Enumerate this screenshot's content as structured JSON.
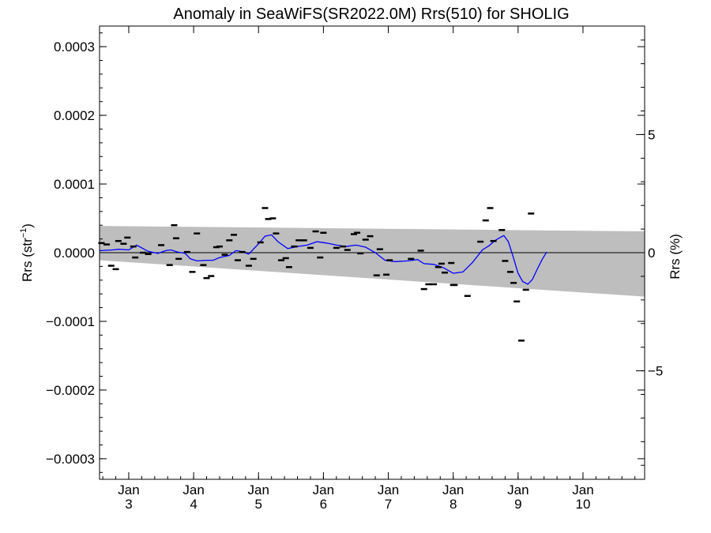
{
  "chart_data": {
    "type": "scatter",
    "title": "Anomaly in SeaWiFS(SR2022.0M) Rrs(510) for SHOLIG",
    "ylabel_left": "Rrs (str",
    "ylabel_left_sup": "−1",
    "ylabel_left_close": ")",
    "ylabel_right": "Rrs (%)",
    "xlim": [
      2.55,
      10.95
    ],
    "ylim": [
      -0.00033,
      0.00033
    ],
    "y_ticks": [
      {
        "value": 0.0003,
        "label": "0.0003"
      },
      {
        "value": 0.0002,
        "label": "0.0002"
      },
      {
        "value": 0.0001,
        "label": "0.0001"
      },
      {
        "value": 0.0,
        "label": "0.0000"
      },
      {
        "value": -0.0001,
        "label": "−0.0001"
      },
      {
        "value": -0.0002,
        "label": "−0.0002"
      },
      {
        "value": -0.0003,
        "label": "−0.0003"
      }
    ],
    "y_right_ticks": [
      {
        "value": 0.000172,
        "label": "5"
      },
      {
        "value": 0.0,
        "label": "0"
      },
      {
        "value": -0.000172,
        "label": "−5"
      }
    ],
    "x_ticks": [
      {
        "value": 3,
        "line1": "Jan",
        "line2": "3"
      },
      {
        "value": 4,
        "line1": "Jan",
        "line2": "4"
      },
      {
        "value": 5,
        "line1": "Jan",
        "line2": "5"
      },
      {
        "value": 6,
        "line1": "Jan",
        "line2": "6"
      },
      {
        "value": 7,
        "line1": "Jan",
        "line2": "7"
      },
      {
        "value": 8,
        "line1": "Jan",
        "line2": "8"
      },
      {
        "value": 9,
        "line1": "Jan",
        "line2": "9"
      },
      {
        "value": 10,
        "line1": "Jan",
        "line2": "10"
      }
    ],
    "band": {
      "upper_start": 3.9e-05,
      "upper_end": 3.1e-05,
      "lower_start": -1.1e-05,
      "lower_end": -6.4e-05,
      "color": "#bebebe"
    },
    "zero_line": 0.0,
    "points": [
      [
        2.58,
        1.4e-05
      ],
      [
        2.66,
        1.2e-05
      ],
      [
        2.73,
        -1.9e-05
      ],
      [
        2.8,
        -2.4e-05
      ],
      [
        2.84,
        1.7e-05
      ],
      [
        2.92,
        1.3e-05
      ],
      [
        2.98,
        2.2e-05
      ],
      [
        3.07,
        9e-06
      ],
      [
        3.1,
        -7e-06
      ],
      [
        3.22,
        0.0
      ],
      [
        3.3,
        -2e-06
      ],
      [
        3.5,
        1.1e-05
      ],
      [
        3.63,
        -1.8e-05
      ],
      [
        3.7,
        4e-05
      ],
      [
        3.73,
        2.1e-05
      ],
      [
        3.77,
        -9e-06
      ],
      [
        3.9,
        1e-06
      ],
      [
        3.98,
        -2.8e-05
      ],
      [
        4.05,
        2.8e-05
      ],
      [
        4.15,
        -1.8e-05
      ],
      [
        4.2,
        -3.7e-05
      ],
      [
        4.27,
        -3.4e-05
      ],
      [
        4.35,
        8e-06
      ],
      [
        4.4,
        9e-06
      ],
      [
        4.48,
        -3e-06
      ],
      [
        4.55,
        1.8e-05
      ],
      [
        4.62,
        2.6e-05
      ],
      [
        4.68,
        -1.1e-05
      ],
      [
        4.75,
        1e-06
      ],
      [
        4.85,
        -1.9e-05
      ],
      [
        4.92,
        -9e-06
      ],
      [
        5.03,
        1.5e-05
      ],
      [
        5.1,
        6.5e-05
      ],
      [
        5.15,
        4.9e-05
      ],
      [
        5.22,
        5e-05
      ],
      [
        5.27,
        2.8e-05
      ],
      [
        5.35,
        -1.1e-05
      ],
      [
        5.42,
        -8e-06
      ],
      [
        5.47,
        -2.1e-05
      ],
      [
        5.55,
        9e-06
      ],
      [
        5.62,
        1.8e-05
      ],
      [
        5.7,
        1.8e-05
      ],
      [
        5.8,
        7e-06
      ],
      [
        5.88,
        3.1e-05
      ],
      [
        5.95,
        -7e-06
      ],
      [
        6.0,
        2.9e-05
      ],
      [
        6.2,
        7e-06
      ],
      [
        6.3,
        9e-06
      ],
      [
        6.37,
        4e-06
      ],
      [
        6.47,
        2.7e-05
      ],
      [
        6.52,
        2.9e-05
      ],
      [
        6.57,
        -1e-06
      ],
      [
        6.65,
        1.9e-05
      ],
      [
        6.72,
        2.4e-05
      ],
      [
        6.82,
        -3.3e-05
      ],
      [
        6.87,
        5e-06
      ],
      [
        6.97,
        -3.2e-05
      ],
      [
        7.02,
        -1.1e-05
      ],
      [
        7.35,
        -9e-06
      ],
      [
        7.5,
        3e-06
      ],
      [
        7.55,
        -5.3e-05
      ],
      [
        7.62,
        -4.6e-05
      ],
      [
        7.7,
        -4.6e-05
      ],
      [
        7.77,
        -2.1e-05
      ],
      [
        7.82,
        -1.6e-05
      ],
      [
        7.87,
        -2.9e-05
      ],
      [
        7.97,
        -1.5e-05
      ],
      [
        8.0,
        -4.7e-05
      ],
      [
        8.02,
        -4.7e-05
      ],
      [
        8.22,
        -6.3e-05
      ],
      [
        8.42,
        1.6e-05
      ],
      [
        8.5,
        4.7e-05
      ],
      [
        8.57,
        6.5e-05
      ],
      [
        8.62,
        1.7e-05
      ],
      [
        8.75,
        3.3e-05
      ],
      [
        8.8,
        -1.2e-05
      ],
      [
        8.88,
        -2.8e-05
      ],
      [
        8.93,
        -4.4e-05
      ],
      [
        8.98,
        -7.1e-05
      ],
      [
        9.05,
        -0.000128
      ],
      [
        9.12,
        -5.4e-05
      ],
      [
        9.2,
        5.7e-05
      ]
    ],
    "smooth_line": [
      [
        2.55,
        3e-06
      ],
      [
        2.75,
        4e-06
      ],
      [
        2.85,
        5e-06
      ],
      [
        3.0,
        4e-06
      ],
      [
        3.12,
        1.1e-05
      ],
      [
        3.3,
        2e-06
      ],
      [
        3.45,
        -1e-06
      ],
      [
        3.57,
        3e-06
      ],
      [
        3.65,
        4e-06
      ],
      [
        3.75,
        1e-06
      ],
      [
        3.87,
        -1e-06
      ],
      [
        3.95,
        -9e-06
      ],
      [
        4.05,
        -1.2e-05
      ],
      [
        4.2,
        -1.1e-05
      ],
      [
        4.3,
        -1.1e-05
      ],
      [
        4.4,
        -7e-06
      ],
      [
        4.55,
        -4e-06
      ],
      [
        4.65,
        3e-06
      ],
      [
        4.72,
        2e-06
      ],
      [
        4.85,
        -2e-06
      ],
      [
        5.0,
        1.3e-05
      ],
      [
        5.1,
        2.4e-05
      ],
      [
        5.2,
        2.6e-05
      ],
      [
        5.3,
        1.6e-05
      ],
      [
        5.45,
        6e-06
      ],
      [
        5.6,
        9e-06
      ],
      [
        5.75,
        1.1e-05
      ],
      [
        5.9,
        1.6e-05
      ],
      [
        6.05,
        1.4e-05
      ],
      [
        6.2,
        1.1e-05
      ],
      [
        6.35,
        9e-06
      ],
      [
        6.5,
        1.1e-05
      ],
      [
        6.65,
        8e-06
      ],
      [
        6.8,
        0.0
      ],
      [
        6.95,
        -1.1e-05
      ],
      [
        7.1,
        -1.3e-05
      ],
      [
        7.3,
        -1.2e-05
      ],
      [
        7.45,
        -1e-05
      ],
      [
        7.55,
        -1.6e-05
      ],
      [
        7.7,
        -1.7e-05
      ],
      [
        7.85,
        -2.2e-05
      ],
      [
        8.0,
        -3e-05
      ],
      [
        8.15,
        -2.8e-05
      ],
      [
        8.3,
        -1.4e-05
      ],
      [
        8.45,
        4e-06
      ],
      [
        8.55,
        1e-05
      ],
      [
        8.65,
        1.8e-05
      ],
      [
        8.72,
        2.2e-05
      ],
      [
        8.78,
        2.5e-05
      ],
      [
        8.85,
        1.6e-05
      ],
      [
        8.92,
        -5e-06
      ],
      [
        9.0,
        -3e-05
      ],
      [
        9.07,
        -4.2e-05
      ],
      [
        9.15,
        -4.6e-05
      ],
      [
        9.22,
        -3.9e-05
      ],
      [
        9.3,
        -2.3e-05
      ],
      [
        9.37,
        -1e-05
      ],
      [
        9.44,
        1e-06
      ]
    ],
    "point_color": "#000000",
    "line_color": "#0000ff"
  }
}
